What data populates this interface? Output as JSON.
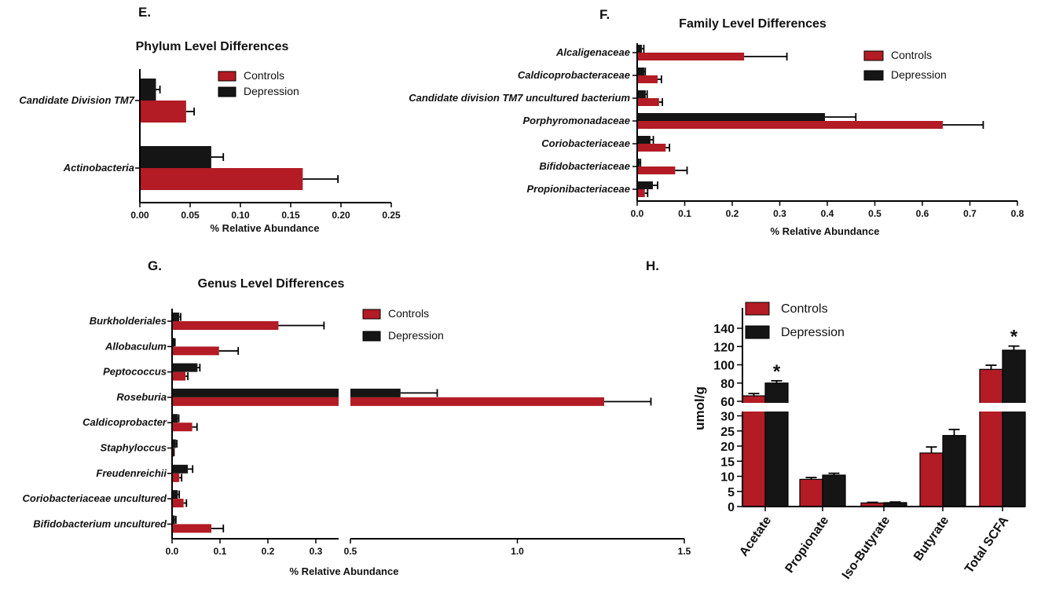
{
  "colors": {
    "controls": "#b31b25",
    "depression": "#151515"
  },
  "chart_data": [
    {
      "panel": "E.",
      "type": "bar",
      "orientation": "horizontal",
      "title": "Phylum Level Differences",
      "xlabel": "% Relative Abundance",
      "xlim": [
        0,
        0.25
      ],
      "xticks": [
        "0.00",
        "0.05",
        "0.10",
        "0.15",
        "0.20",
        "0.25"
      ],
      "categories": [
        "Candidate Division TM7",
        "Actinobacteria"
      ],
      "series": [
        {
          "name": "Controls",
          "values": [
            0.046,
            0.162
          ],
          "errors": [
            0.008,
            0.035
          ]
        },
        {
          "name": "Depression",
          "values": [
            0.016,
            0.071
          ],
          "errors": [
            0.004,
            0.012
          ]
        }
      ],
      "legend": "top-right"
    },
    {
      "panel": "F.",
      "type": "bar",
      "orientation": "horizontal",
      "title": "Family Level Differences",
      "xlabel": "% Relative Abundance",
      "xlim": [
        0,
        0.8
      ],
      "xticks": [
        "0.0",
        "0.1",
        "0.2",
        "0.3",
        "0.4",
        "0.5",
        "0.6",
        "0.7",
        "0.8"
      ],
      "categories": [
        "Alcaligenaceae",
        "Caldicoprobacteraceae",
        "Candidate division TM7 uncultured bacterium",
        "Porphyromonadaceae",
        "Coriobacteriaceae",
        "Bifidobacteriaceae",
        "Propionibacteriaceae"
      ],
      "series": [
        {
          "name": "Controls",
          "values": [
            0.225,
            0.043,
            0.046,
            0.643,
            0.06,
            0.08,
            0.016
          ],
          "errors": [
            0.09,
            0.008,
            0.007,
            0.085,
            0.008,
            0.025,
            0.006
          ]
        },
        {
          "name": "Depression",
          "values": [
            0.01,
            0.015,
            0.018,
            0.395,
            0.028,
            0.005,
            0.033
          ],
          "errors": [
            0.004,
            0.002,
            0.003,
            0.065,
            0.006,
            0.002,
            0.01
          ]
        }
      ],
      "legend": "top-right"
    },
    {
      "panel": "G.",
      "type": "bar",
      "orientation": "horizontal",
      "title": "Genus Level Differences",
      "xlabel": "% Relative Abundance",
      "xlim": [
        0,
        1.5
      ],
      "axis_break": [
        0.35,
        0.5
      ],
      "xticks": [
        "0.0",
        "0.1",
        "0.2",
        "0.3",
        "0.5",
        "1.0",
        "1.5"
      ],
      "categories": [
        "Burkholderiales",
        "Allobaculum",
        "Peptococcus",
        "Roseburia",
        "Caldicoprobacter",
        "Staphyloccus",
        "Freudenreichii",
        "Coriobacteriaceae uncultured",
        "Bifidobacterium uncultured"
      ],
      "series": [
        {
          "name": "Controls",
          "values": [
            0.222,
            0.098,
            0.028,
            1.26,
            0.042,
            0.003,
            0.015,
            0.024,
            0.082
          ],
          "errors": [
            0.095,
            0.04,
            0.005,
            0.14,
            0.01,
            0.001,
            0.005,
            0.006,
            0.025
          ]
        },
        {
          "name": "Depression",
          "values": [
            0.015,
            0.005,
            0.053,
            0.65,
            0.012,
            0.008,
            0.033,
            0.012,
            0.006
          ],
          "errors": [
            0.003,
            0.001,
            0.005,
            0.11,
            0.002,
            0.002,
            0.01,
            0.003,
            0.002
          ]
        }
      ],
      "legend": "top-right"
    },
    {
      "panel": "H.",
      "type": "bar",
      "orientation": "vertical",
      "title": "",
      "ylabel": "umol/g",
      "ylim": [
        0,
        140
      ],
      "axis_break": [
        30,
        60
      ],
      "yticks_lower": [
        "0",
        "5",
        "10",
        "15",
        "20",
        "25",
        "30"
      ],
      "yticks_upper": [
        "60",
        "80",
        "100",
        "120",
        "140"
      ],
      "categories": [
        "Acetate",
        "Propionate",
        "Iso-Butyrate",
        "Butyrate",
        "Total SCFA"
      ],
      "series": [
        {
          "name": "Controls",
          "values": [
            66,
            9,
            1.2,
            17.7,
            95
          ],
          "errors": [
            2.5,
            0.6,
            0.2,
            2.0,
            4.5
          ]
        },
        {
          "name": "Depression",
          "values": [
            80,
            10.4,
            1.3,
            23.5,
            116
          ],
          "errors": [
            2.5,
            0.6,
            0.2,
            2.0,
            4.5
          ]
        }
      ],
      "significance": [
        {
          "category": "Acetate",
          "label": "*"
        },
        {
          "category": "Total SCFA",
          "label": "*"
        }
      ],
      "legend": "top-left"
    }
  ]
}
